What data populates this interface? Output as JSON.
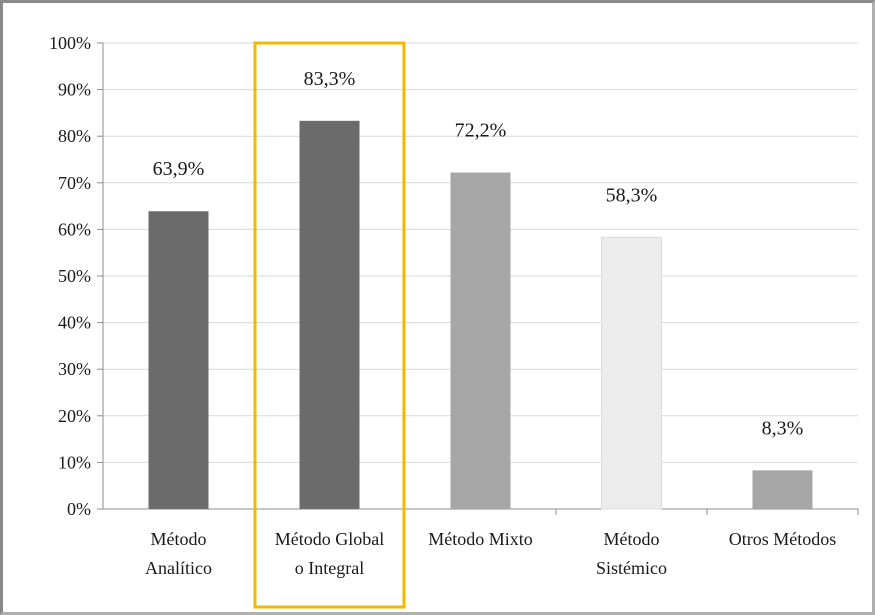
{
  "chart_data": {
    "type": "bar",
    "categories": [
      [
        "Método",
        "Analítico"
      ],
      [
        "Método Global",
        "o Integral"
      ],
      [
        "Método Mixto"
      ],
      [
        "Método",
        "Sistémico"
      ],
      [
        "Otros Métodos"
      ]
    ],
    "values": [
      63.9,
      83.3,
      72.2,
      58.3,
      8.3
    ],
    "data_labels": [
      "63,9%",
      "83,3%",
      "72,2%",
      "58,3%",
      "8,3%"
    ],
    "bar_colors": [
      "#6b6b6b",
      "#6b6b6b",
      "#a6a6a6",
      "#ececec",
      "#a6a6a6"
    ],
    "y_ticks": [
      "0%",
      "10%",
      "20%",
      "30%",
      "40%",
      "50%",
      "60%",
      "70%",
      "80%",
      "90%",
      "100%"
    ],
    "ylim": [
      0,
      100
    ],
    "grid": true,
    "highlight": {
      "category_index": 1,
      "color": "#f5b800"
    },
    "title": "",
    "xlabel": "",
    "ylabel": ""
  }
}
